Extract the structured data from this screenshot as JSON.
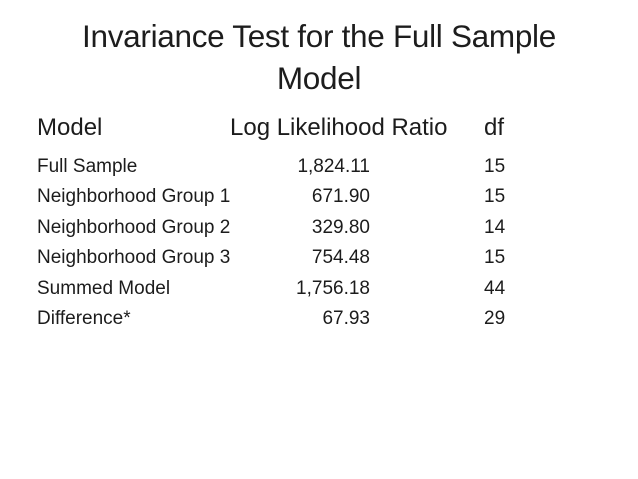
{
  "slide": {
    "background_color": "#ffffff",
    "text_color": "#1c1c1c",
    "title_line1": "Invariance Test for the Full Sample",
    "title_line2": "Model",
    "table": {
      "columns": [
        "Model",
        "Log Likelihood Ratio",
        "df"
      ],
      "rows": [
        {
          "model": "Full Sample",
          "log_likelihood_ratio": "1,824.11",
          "df": "15"
        },
        {
          "model": "Neighborhood Group 1",
          "log_likelihood_ratio": "671.90",
          "df": "15"
        },
        {
          "model": "Neighborhood Group 2",
          "log_likelihood_ratio": "329.80",
          "df": "14"
        },
        {
          "model": "Neighborhood Group 3",
          "log_likelihood_ratio": "754.48",
          "df": "15"
        },
        {
          "model": "Summed Model",
          "log_likelihood_ratio": "1,756.18",
          "df": "44"
        },
        {
          "model": "Difference*",
          "log_likelihood_ratio": "67.93",
          "df": "29"
        }
      ]
    }
  }
}
